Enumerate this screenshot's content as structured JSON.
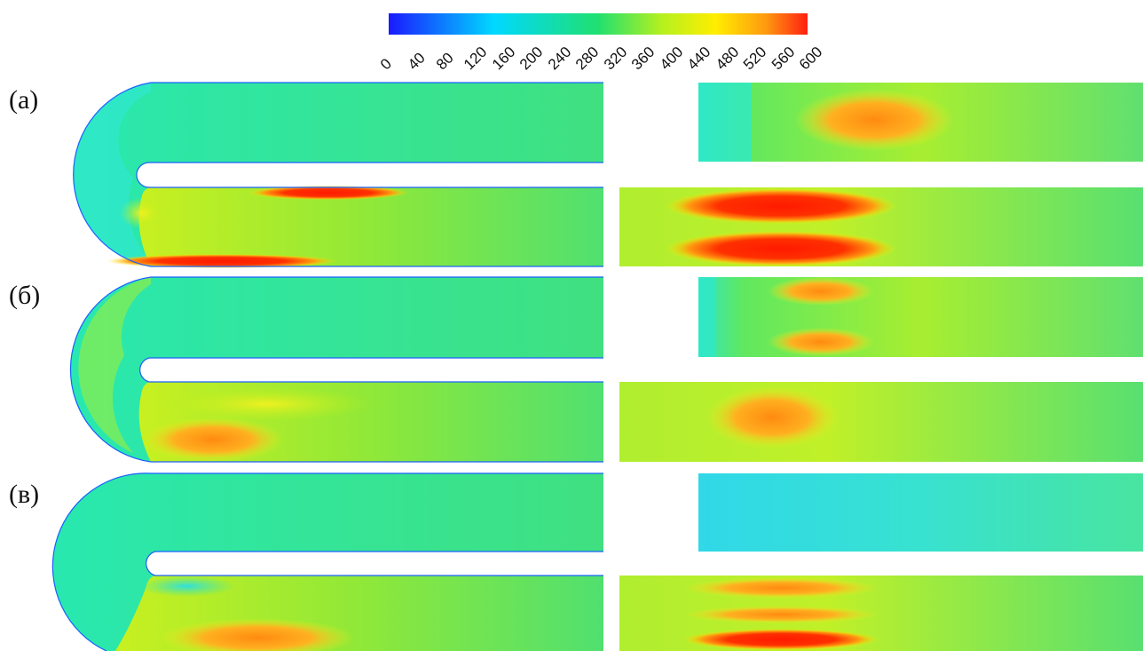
{
  "colorbar": {
    "ticks": [
      "0",
      "40",
      "80",
      "120",
      "160",
      "200",
      "240",
      "280",
      "320",
      "360",
      "400",
      "440",
      "480",
      "520",
      "560",
      "600"
    ],
    "range": [
      0,
      600
    ],
    "colors": [
      "#1a1aff",
      "#00c8ff",
      "#20e070",
      "#b4f020",
      "#ffee00",
      "#ff9a10",
      "#ff2010"
    ]
  },
  "panels": [
    {
      "label": "(а)"
    },
    {
      "label": "(б)"
    },
    {
      "label": "(в)"
    }
  ]
}
